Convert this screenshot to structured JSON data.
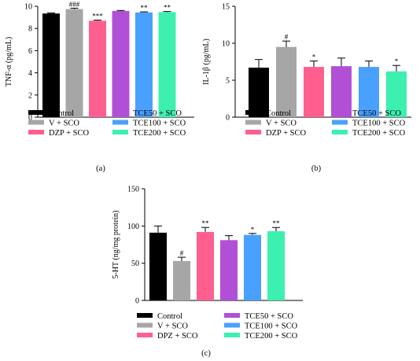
{
  "chart_data": [
    {
      "type": "bar",
      "panel_label": "(a)",
      "ylabel": "TNF-α (pg/mL)",
      "ylim": [
        0,
        10
      ],
      "yticks": [
        0,
        2,
        4,
        6,
        8,
        10
      ],
      "categories": [
        "Control",
        "V + SCO",
        "DZP + SCO",
        "TCE50 + SCO",
        "TCE100 + SCO",
        "TCE200 + SCO"
      ],
      "values": [
        9.35,
        9.75,
        8.7,
        9.58,
        9.45,
        9.48
      ],
      "errors": [
        0.05,
        0.08,
        0.05,
        0.04,
        0.05,
        0.05
      ],
      "significance": [
        "",
        "###",
        "***",
        "",
        "**",
        "**"
      ],
      "colors": [
        "#000000",
        "#a6a6a6",
        "#ff5f8f",
        "#b150d6",
        "#4aa0ff",
        "#3df0b0"
      ]
    },
    {
      "type": "bar",
      "panel_label": "(b)",
      "ylabel": "IL-1β (pg/mL)",
      "ylim": [
        0,
        15
      ],
      "yticks": [
        0,
        5,
        10,
        15
      ],
      "categories": [
        "Control",
        "V + SCO",
        "DZP + SCO",
        "TCE50 + SCO",
        "TCE100 + SCO",
        "TCE200 + SCO"
      ],
      "values": [
        6.7,
        9.5,
        6.8,
        6.9,
        6.8,
        6.2
      ],
      "errors": [
        1.1,
        0.8,
        0.8,
        1.1,
        0.8,
        0.8
      ],
      "significance": [
        "",
        "#",
        "*",
        "",
        "",
        "*"
      ],
      "colors": [
        "#000000",
        "#a6a6a6",
        "#ff5f8f",
        "#b150d6",
        "#4aa0ff",
        "#3df0b0"
      ]
    },
    {
      "type": "bar",
      "panel_label": "(c)",
      "ylabel": "5-HT (ng/mg protein)",
      "ylim": [
        0,
        150
      ],
      "yticks": [
        0,
        50,
        100,
        150
      ],
      "categories": [
        "Control",
        "V + SCO",
        "DPZ + SCO",
        "TCE50 + SCO",
        "TCE100 + SCO",
        "TCE200 + SCO"
      ],
      "values": [
        91,
        53,
        92,
        81,
        88,
        93
      ],
      "errors": [
        9,
        5,
        6,
        6,
        2,
        5
      ],
      "significance": [
        "",
        "#",
        "**",
        "",
        "*",
        "**"
      ],
      "colors": [
        "#000000",
        "#a6a6a6",
        "#ff5f8f",
        "#b150d6",
        "#4aa0ff",
        "#3df0b0"
      ]
    }
  ]
}
